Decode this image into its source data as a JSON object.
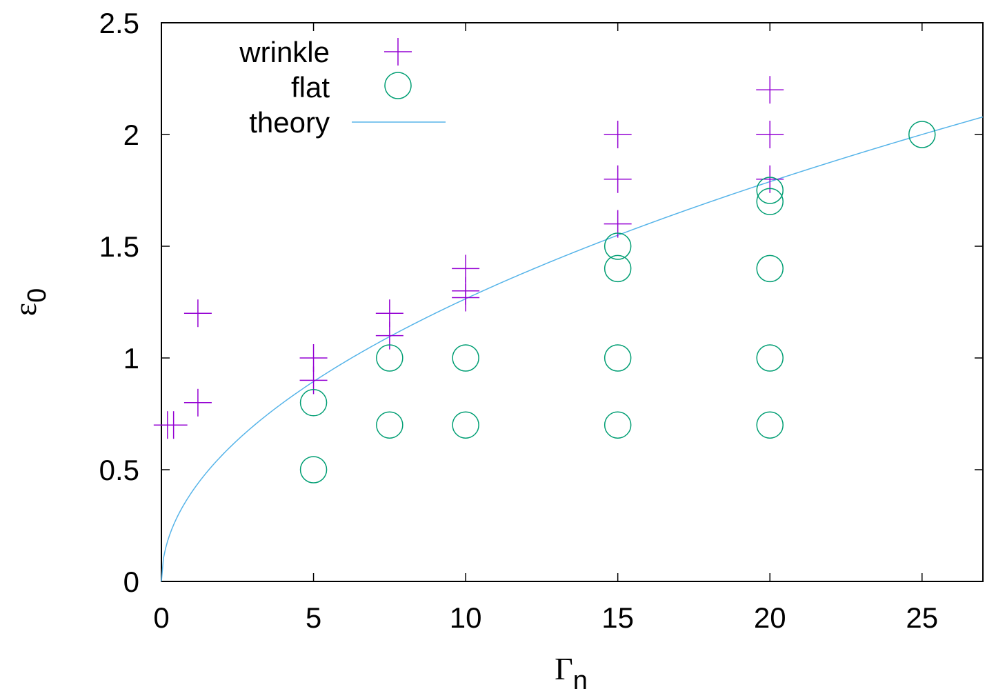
{
  "chart_data": {
    "type": "scatter",
    "title": "",
    "xlabel": "Γ",
    "xlabel_sub": "n",
    "ylabel": "ε",
    "ylabel_sub": "0",
    "xlim": [
      0,
      27
    ],
    "ylim": [
      0,
      2.5
    ],
    "x_ticks": [
      0,
      5,
      10,
      15,
      20,
      25
    ],
    "x_tick_labels": [
      "0",
      "5",
      "10",
      "15",
      "20",
      "25"
    ],
    "y_ticks": [
      0,
      0.5,
      1,
      1.5,
      2,
      2.5
    ],
    "y_tick_labels": [
      "0",
      "0.5",
      "1",
      "1.5",
      "2",
      "2.5"
    ],
    "grid": false,
    "legend_position": "top-left",
    "series": [
      {
        "name": "wrinkle",
        "marker": "plus",
        "color": "#9400d3",
        "points": [
          [
            0.2,
            0.7
          ],
          [
            0.4,
            0.7
          ],
          [
            1.2,
            0.8
          ],
          [
            1.2,
            1.2
          ],
          [
            5,
            0.9
          ],
          [
            5,
            1.0
          ],
          [
            7.5,
            1.1
          ],
          [
            7.5,
            1.2
          ],
          [
            10,
            1.27
          ],
          [
            10,
            1.3
          ],
          [
            10,
            1.4
          ],
          [
            15,
            1.6
          ],
          [
            15,
            1.8
          ],
          [
            15,
            2.0
          ],
          [
            20,
            1.8
          ],
          [
            20,
            2.0
          ],
          [
            20,
            2.2
          ]
        ]
      },
      {
        "name": "flat",
        "marker": "circle",
        "color": "#009e73",
        "points": [
          [
            5,
            0.5
          ],
          [
            5,
            0.8
          ],
          [
            7.5,
            0.7
          ],
          [
            7.5,
            1.0
          ],
          [
            10,
            0.7
          ],
          [
            10,
            1.0
          ],
          [
            15,
            0.7
          ],
          [
            15,
            1.0
          ],
          [
            15,
            1.4
          ],
          [
            15,
            1.5
          ],
          [
            20,
            0.7
          ],
          [
            20,
            1.0
          ],
          [
            20,
            1.4
          ],
          [
            20,
            1.7
          ],
          [
            20,
            1.75
          ],
          [
            25,
            2.0
          ]
        ]
      },
      {
        "name": "theory",
        "marker": "line",
        "color": "#56b4e9",
        "function": "0.4 * sqrt(x)",
        "x_range": [
          0,
          27
        ]
      }
    ]
  }
}
